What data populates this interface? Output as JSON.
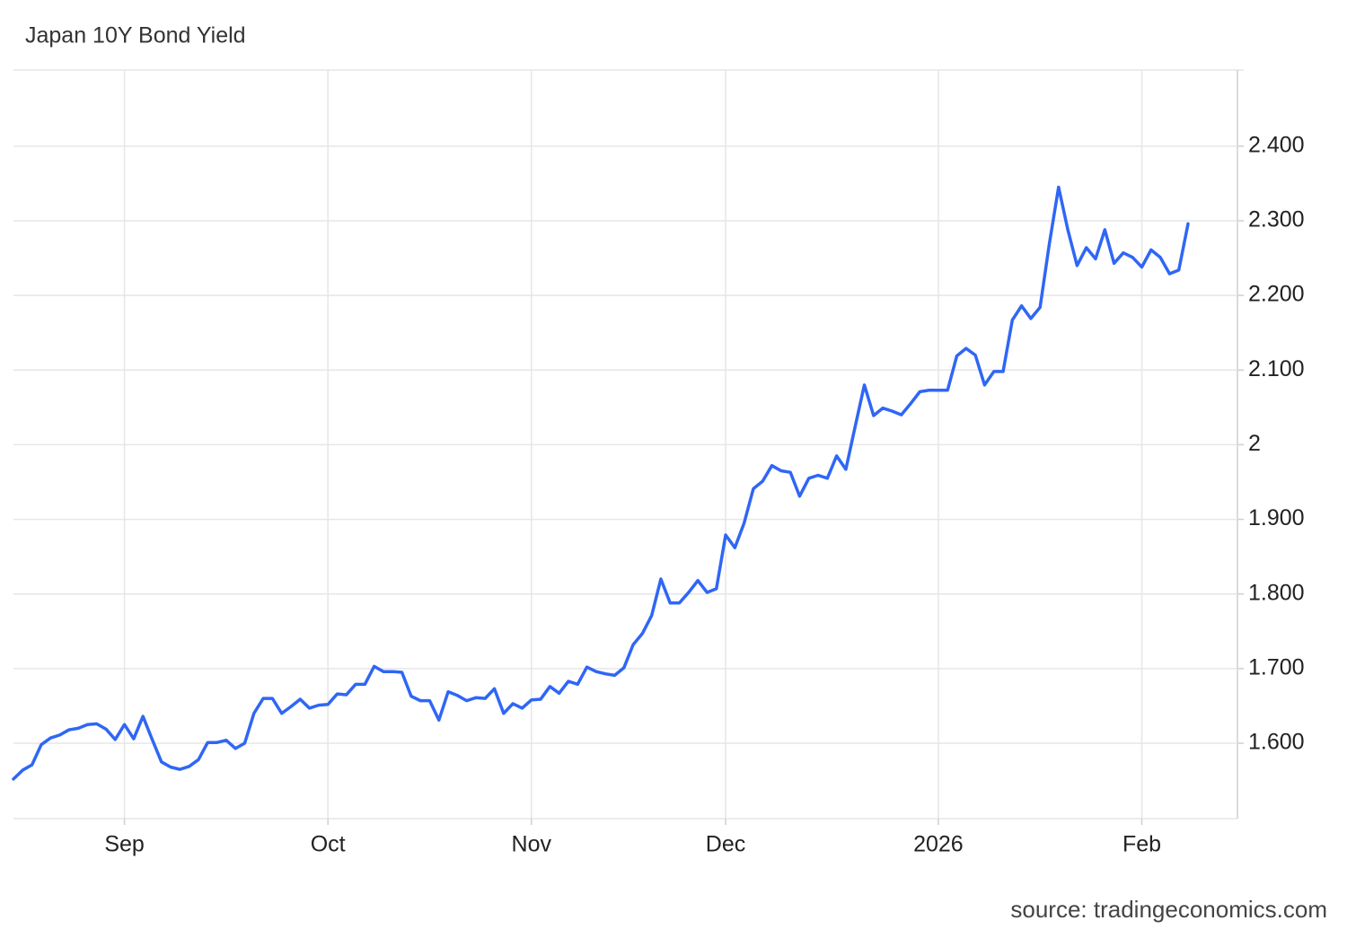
{
  "chart_data": {
    "type": "line",
    "title": "Japan 10Y Bond Yield",
    "source": "source: tradingeconomics.com",
    "color": "#2f66f5",
    "grid": true,
    "categories": [
      null,
      null,
      null,
      null,
      null,
      null,
      null,
      null,
      null,
      null,
      null,
      null,
      "Sep",
      null,
      null,
      null,
      null,
      null,
      null,
      null,
      null,
      null,
      null,
      null,
      null,
      null,
      null,
      null,
      null,
      null,
      null,
      null,
      null,
      null,
      "Oct",
      null,
      null,
      null,
      null,
      null,
      null,
      null,
      null,
      null,
      null,
      null,
      null,
      null,
      null,
      null,
      null,
      null,
      null,
      null,
      null,
      null,
      "Nov",
      null,
      null,
      null,
      null,
      null,
      null,
      null,
      null,
      null,
      null,
      null,
      null,
      null,
      null,
      null,
      null,
      null,
      null,
      null,
      null,
      "Dec",
      null,
      null,
      null,
      null,
      null,
      null,
      null,
      null,
      null,
      null,
      null,
      null,
      null,
      null,
      null,
      null,
      null,
      null,
      null,
      null,
      null,
      null,
      "2026",
      null,
      null,
      null,
      null,
      null,
      null,
      null,
      null,
      null,
      null,
      null,
      null,
      null,
      null,
      null,
      null,
      null,
      null,
      null,
      null,
      null,
      "Feb",
      null,
      null,
      null,
      null,
      null
    ],
    "values": [
      1.552,
      1.564,
      1.571,
      1.598,
      1.607,
      1.611,
      1.618,
      1.62,
      1.625,
      1.626,
      1.619,
      1.605,
      1.625,
      1.606,
      1.636,
      1.605,
      1.575,
      1.568,
      1.565,
      1.569,
      1.578,
      1.601,
      1.601,
      1.604,
      1.593,
      1.6,
      1.64,
      1.66,
      1.66,
      1.64,
      1.649,
      1.659,
      1.647,
      1.651,
      1.652,
      1.666,
      1.665,
      1.679,
      1.679,
      1.703,
      1.696,
      1.696,
      1.695,
      1.663,
      1.657,
      1.657,
      1.631,
      1.669,
      1.664,
      1.657,
      1.661,
      1.66,
      1.673,
      1.64,
      1.653,
      1.647,
      1.658,
      1.659,
      1.676,
      1.667,
      1.683,
      1.679,
      1.702,
      1.696,
      1.693,
      1.691,
      1.701,
      1.732,
      1.747,
      1.771,
      1.82,
      1.788,
      1.788,
      1.802,
      1.818,
      1.802,
      1.807,
      1.879,
      1.862,
      1.895,
      1.941,
      1.951,
      1.972,
      1.965,
      1.963,
      1.931,
      1.955,
      1.959,
      1.955,
      1.985,
      1.967,
      2.024,
      2.08,
      2.039,
      2.049,
      2.045,
      2.04,
      2.055,
      2.071,
      2.073,
      2.073,
      2.073,
      2.119,
      2.129,
      2.12,
      2.08,
      2.098,
      2.098,
      2.167,
      2.186,
      2.169,
      2.184,
      2.269,
      2.345,
      2.288,
      2.24,
      2.264,
      2.249,
      2.288,
      2.243,
      2.257,
      2.251,
      2.238,
      2.261,
      2.251,
      2.229,
      2.234,
      2.296
    ],
    "ylim": [
      1.499,
      2.502
    ],
    "yticks": [
      {
        "value": 1.6,
        "label": "1.600"
      },
      {
        "value": 1.7,
        "label": "1.700"
      },
      {
        "value": 1.8,
        "label": "1.800"
      },
      {
        "value": 1.9,
        "label": "1.900"
      },
      2,
      {
        "value": 2.1,
        "label": "2.100"
      },
      {
        "value": 2.2,
        "label": "2.200"
      },
      {
        "value": 2.3,
        "label": "2.300"
      },
      {
        "value": 2.4,
        "label": "2.400"
      }
    ]
  }
}
